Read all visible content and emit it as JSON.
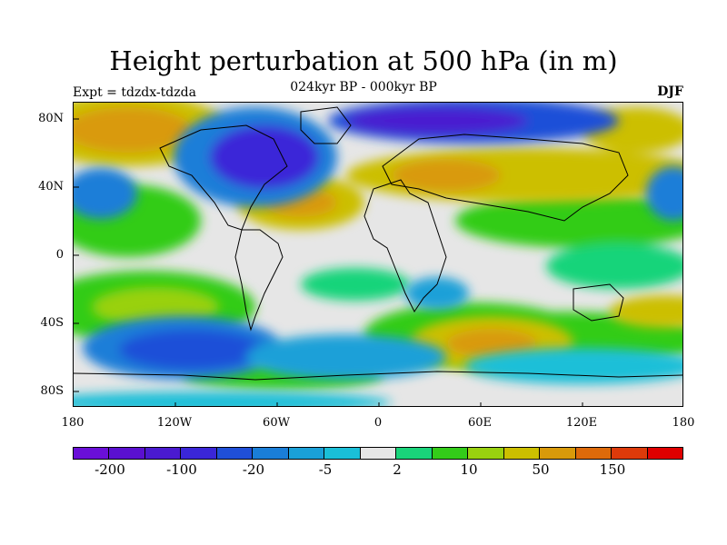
{
  "title": "Height perturbation at 500 hPa (in m)",
  "subtitle": "024kyr BP - 000kyr BP",
  "left_label": "Expt = tdzdx-tdzda",
  "right_label": "DJF",
  "lat_ticks": [
    "80N",
    "40N",
    "0",
    "40S",
    "80S"
  ],
  "lon_ticks": [
    "180",
    "120W",
    "60W",
    "0",
    "60E",
    "120E",
    "180"
  ],
  "colorbar": {
    "colors": [
      "#6a0fd8",
      "#5a10d0",
      "#4a1ad0",
      "#3a26d8",
      "#1f4fd8",
      "#1a7ed8",
      "#1aa0d8",
      "#1abfd8",
      "#e6e6e6",
      "#19d47a",
      "#33cc19",
      "#99d10f",
      "#ccbf00",
      "#d99a0a",
      "#dd6a0a",
      "#dd3a0a",
      "#e00000"
    ],
    "labels": [
      "-200",
      "-100",
      "-20",
      "-5",
      "2",
      "10",
      "50",
      "150"
    ]
  }
}
